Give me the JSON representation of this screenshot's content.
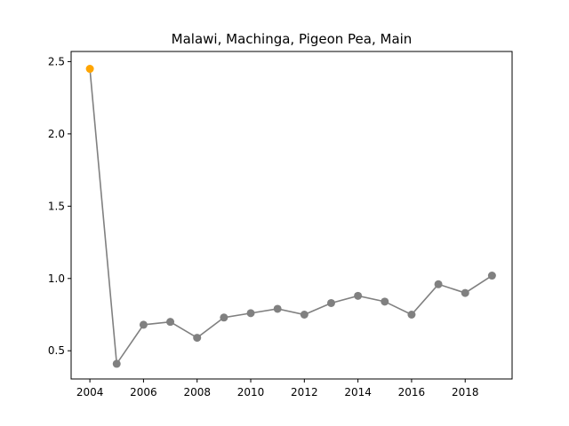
{
  "chart_data": {
    "type": "line",
    "title": "Malawi, Machinga, Pigeon Pea, Main",
    "xlabel": "",
    "ylabel": "",
    "xlim": [
      2003.3,
      2019.75
    ],
    "ylim": [
      0.305,
      2.57
    ],
    "x_ticks": [
      2004,
      2006,
      2008,
      2010,
      2012,
      2014,
      2016,
      2018
    ],
    "y_ticks": [
      0.5,
      1.0,
      1.5,
      2.0,
      2.5
    ],
    "y_tick_labels": [
      "0.5",
      "1.0",
      "1.5",
      "2.0",
      "2.5"
    ],
    "grid": false,
    "series": [
      {
        "x": [
          2004,
          2005,
          2006,
          2007,
          2008,
          2009,
          2010,
          2011,
          2012,
          2013,
          2014,
          2015,
          2016,
          2017,
          2018,
          2019
        ],
        "values": [
          2.45,
          0.41,
          0.68,
          0.7,
          0.59,
          0.73,
          0.76,
          0.79,
          0.75,
          0.83,
          0.88,
          0.84,
          0.75,
          0.96,
          0.9,
          1.02
        ],
        "line_color": "#808080",
        "marker_color": "#808080",
        "highlight_index": 0,
        "highlight_color": "#FFA500"
      }
    ]
  }
}
